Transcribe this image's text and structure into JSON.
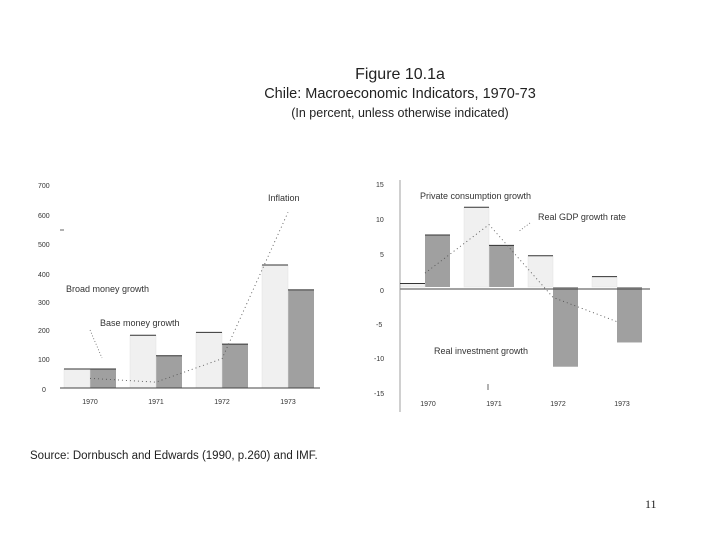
{
  "figure": {
    "label": "Figure 10.1a",
    "title": "Chile: Macroeconomic Indicators, 1970-73",
    "subtitle": "(In percent, unless otherwise indicated)"
  },
  "chart_data": [
    {
      "type": "bar",
      "categories": [
        "1970",
        "1971",
        "1972",
        "1973"
      ],
      "series": [
        {
          "name": "Broad money growth",
          "color": "#f0f0f0",
          "values": [
            65,
            180,
            190,
            420
          ]
        },
        {
          "name": "Base money growth",
          "color": "#a0a0a0",
          "values": [
            65,
            110,
            150,
            335
          ]
        }
      ],
      "line_series": {
        "name": "Inflation",
        "values": [
          33,
          20,
          100,
          600
        ]
      },
      "yticks": [
        "0",
        "100",
        "200",
        "300",
        "400",
        "500",
        "600",
        "700"
      ],
      "ylim": [
        0,
        700
      ],
      "annotations": {
        "inflation": "Inflation",
        "broad_money": "Broad money growth",
        "base_money": "Base money growth"
      }
    },
    {
      "type": "bar",
      "categories": [
        "1970",
        "1971",
        "1972",
        "1973"
      ],
      "series": [
        {
          "name": "Private consumption growth",
          "color": "#f0f0f0",
          "values": [
            0.5,
            11.5,
            4.5,
            1.5
          ]
        },
        {
          "name": "Real investment growth",
          "color": "#a0a0a0",
          "values": [
            7.5,
            6,
            -11.5,
            -8
          ]
        }
      ],
      "line_series": {
        "name": "Real GDP growth rate",
        "values": [
          2,
          9,
          -1.5,
          -5
        ]
      },
      "yticks": [
        "15",
        "10",
        "5",
        "0",
        "-5",
        "-10",
        "-15"
      ],
      "ylim": [
        -15,
        15
      ],
      "annotations": {
        "consumption": "Private consumption growth",
        "gdp": "Real GDP growth rate",
        "investment": "Real investment growth"
      }
    }
  ],
  "source": "Source: Dornbusch and Edwards (1990, p.260) and IMF.",
  "page_number": "11"
}
